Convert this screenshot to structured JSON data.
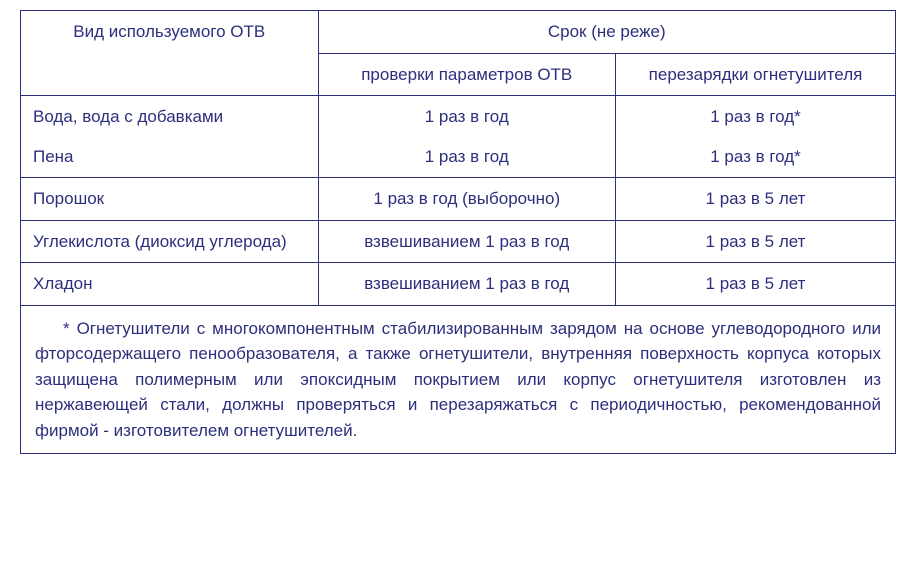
{
  "header": {
    "col1": "Вид используемого ОТВ",
    "col2_merged": "Срок (не реже)",
    "sub_a": "проверки параметров ОТВ",
    "sub_b": "перезарядки огнетушителя"
  },
  "rows": {
    "r1": {
      "name_a": "Вода, вода с добавками",
      "name_b": "Пена",
      "check_a": "1 раз в год",
      "check_b": "1 раз в год",
      "recharge_a": "1 раз в год*",
      "recharge_b": "1 раз в год*"
    },
    "r2": {
      "name": "Порошок",
      "check": "1 раз в год (выборочно)",
      "recharge": "1 раз в 5 лет"
    },
    "r3": {
      "name": "Углекислота (диоксид углерода)",
      "check": "взвешиванием 1 раз в год",
      "recharge": "1 раз в 5 лет"
    },
    "r4": {
      "name": "Хладон",
      "check": "взвешиванием 1 раз в год",
      "recharge": "1 раз в 5 лет"
    }
  },
  "footnote": "* Огнетушители с многокомпонентным стабилизированным зарядом на основе углеводородного или фторсодержащего пенообразователя, а также огнетушители, внутренняя поверхность корпуса которых защищена полимерным или эпоксидным покрытием или корпус огнетушителя изготовлен из нержавеющей стали, должны проверяться и перезаряжаться с периодичностью, рекомендованной фирмой - изготовителем огнетушителей.",
  "colors": {
    "text": "#2c2f7c",
    "border": "#2c2f7c",
    "background": "#ffffff"
  },
  "typography": {
    "font_family": "Arial",
    "font_size_pt": 13
  }
}
